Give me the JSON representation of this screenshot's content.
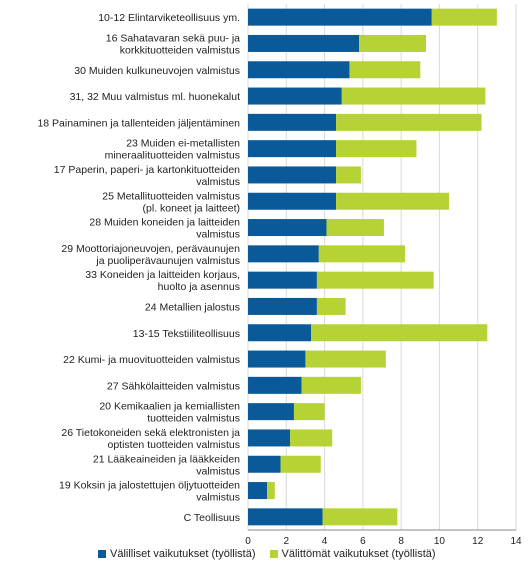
{
  "chart_data": {
    "type": "bar",
    "orientation": "horizontal",
    "stacked": true,
    "categories": [
      [
        "10-12 Elintarviketeollisuus ym."
      ],
      [
        "16 Sahatavaran sekä puu- ja",
        "korkkituotteiden valmistus"
      ],
      [
        "30 Muiden kulkuneuvojen valmistus"
      ],
      [
        "31, 32 Muu valmistus ml. huonekalut"
      ],
      [
        "18 Painaminen ja tallenteiden jäljentäminen"
      ],
      [
        "23 Muiden ei-metallisten",
        "mineraalituotteiden valmistus"
      ],
      [
        "17 Paperin, paperi- ja kartonkituotteiden",
        "valmistus"
      ],
      [
        "25 Metallituotteiden valmistus",
        "(pl. koneet ja laitteet)"
      ],
      [
        "28 Muiden koneiden ja laitteiden",
        "valmistus"
      ],
      [
        "29 Moottoriajoneuvojen, perävaunujen",
        "ja puoliperävaunujen valmistus"
      ],
      [
        "33 Koneiden ja laitteiden korjaus,",
        "huolto ja asennus"
      ],
      [
        "24 Metallien jalostus"
      ],
      [
        "13-15 Tekstiiliteollisuus"
      ],
      [
        "22 Kumi- ja muovituotteiden valmistus"
      ],
      [
        "27 Sähkölaitteiden valmistus"
      ],
      [
        "20 Kemikaalien ja kemiallisten",
        "tuotteiden valmistus"
      ],
      [
        "26 Tietokoneiden sekä elektronisten ja",
        "optisten tuotteiden valmistus"
      ],
      [
        "21 Lääkeaineiden ja lääkkeiden",
        "valmistus"
      ],
      [
        "19 Koksin ja jalostettujen öljytuotteiden",
        "valmistus"
      ],
      [
        "C Teollisuus"
      ]
    ],
    "series": [
      {
        "name": "Välilliset vaikutukset (työllistä)",
        "color": "#0a5a99",
        "values": [
          9.6,
          5.8,
          5.3,
          4.9,
          4.6,
          4.6,
          4.6,
          4.6,
          4.1,
          3.7,
          3.6,
          3.6,
          3.3,
          3.0,
          2.8,
          2.4,
          2.2,
          1.7,
          1.0,
          3.9
        ]
      },
      {
        "name": "Välittömät vaikutukset (työllistä)",
        "color": "#b5d334",
        "values": [
          3.4,
          3.5,
          3.7,
          7.5,
          7.6,
          4.2,
          1.3,
          5.9,
          3.0,
          4.5,
          6.1,
          1.5,
          9.2,
          4.2,
          3.1,
          1.6,
          2.2,
          2.1,
          0.4,
          3.9
        ]
      }
    ],
    "xlim": [
      0,
      14
    ],
    "xticks": [
      "0",
      "2",
      "4",
      "6",
      "8",
      "10",
      "12",
      "14"
    ],
    "grid": "vertical",
    "legend": "bottom"
  }
}
